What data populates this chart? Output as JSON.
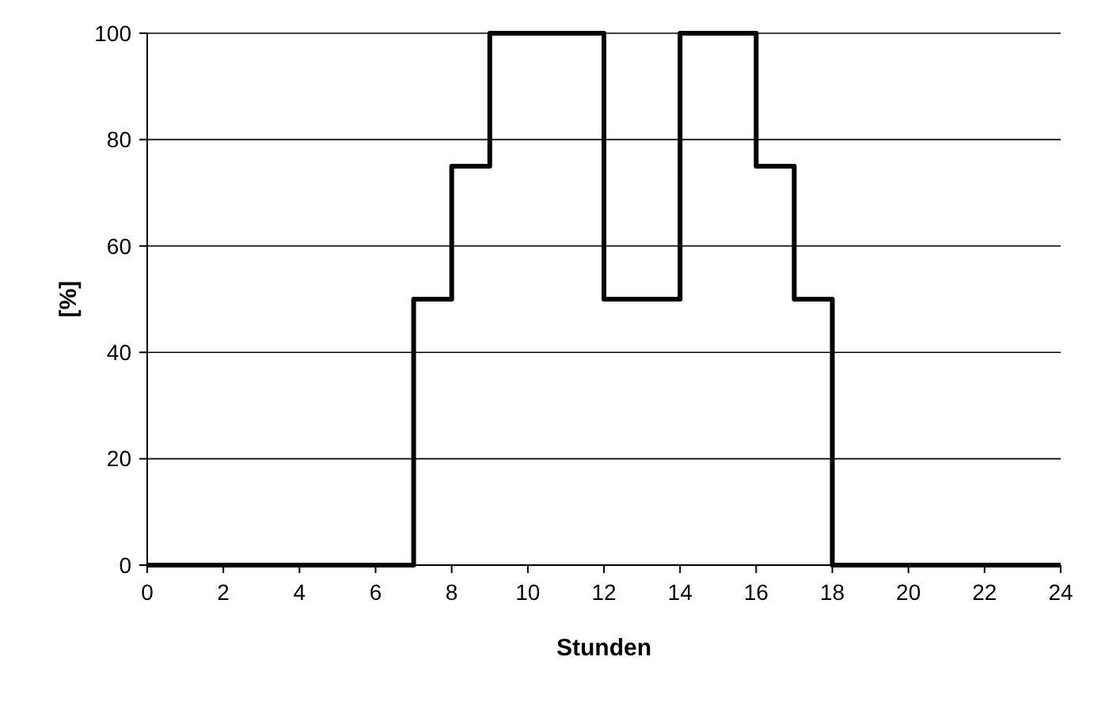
{
  "chart_data": {
    "type": "step",
    "xlabel": "Stunden",
    "ylabel": "[%]",
    "x": [
      0,
      7,
      8,
      9,
      12,
      14,
      16,
      17,
      18,
      24
    ],
    "series": [
      {
        "color": "#000000",
        "values": [
          0,
          50,
          75,
          100,
          50,
          100,
          75,
          50,
          0,
          0
        ]
      }
    ],
    "xlim": [
      0,
      24
    ],
    "xticks": [
      0,
      2,
      4,
      6,
      8,
      10,
      12,
      14,
      16,
      18,
      20,
      22,
      24
    ],
    "ylim": [
      0,
      100
    ],
    "yticks": [
      0,
      20,
      40,
      60,
      80,
      100
    ],
    "grid": "y",
    "line_style": "solid"
  }
}
